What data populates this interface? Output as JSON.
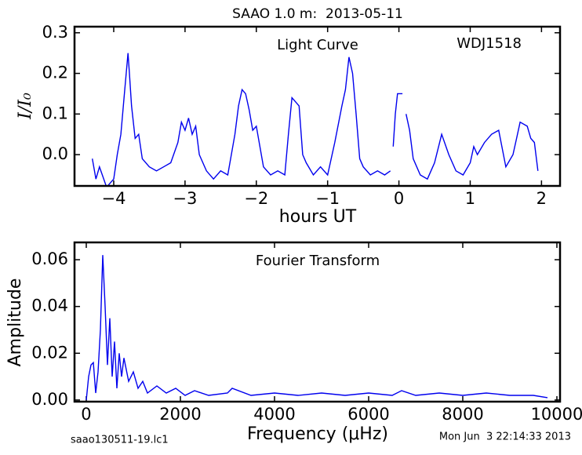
{
  "title": "SAAO 1.0 m:  2013-05-11",
  "footer": {
    "left": "saao130511-19.lc1",
    "right": "Mon Jun  3 22:14:33 2013"
  },
  "chart_data": [
    {
      "type": "line",
      "annotations": [
        "Light Curve",
        "WDJ1518"
      ],
      "xlabel": "hours UT",
      "ylabel": "I/I₀",
      "x": [
        -4.3,
        -4.25,
        -4.2,
        -4.1,
        -4.0,
        -3.95,
        -3.9,
        -3.85,
        -3.8,
        -3.78,
        -3.75,
        -3.7,
        -3.65,
        -3.6,
        -3.5,
        -3.4,
        -3.3,
        -3.2,
        -3.1,
        -3.05,
        -3.0,
        -2.95,
        -2.9,
        -2.85,
        -2.8,
        -2.7,
        -2.6,
        -2.5,
        -2.4,
        -2.3,
        -2.25,
        -2.2,
        -2.15,
        -2.1,
        -2.05,
        -2.0,
        -1.9,
        -1.8,
        -1.7,
        -1.6,
        -1.55,
        -1.5,
        -1.45,
        -1.4,
        -1.35,
        -1.3,
        -1.2,
        -1.1,
        -1.0,
        -0.9,
        -0.8,
        -0.75,
        -0.7,
        -0.65,
        -0.6,
        -0.55,
        -0.5,
        -0.4,
        -0.3,
        -0.2,
        -0.12,
        -0.1,
        -0.08,
        -0.05,
        -0.02,
        0.0,
        0.05,
        0.07,
        0.1,
        0.15,
        0.2,
        0.3,
        0.4,
        0.5,
        0.6,
        0.7,
        0.8,
        0.9,
        1.0,
        1.05,
        1.1,
        1.2,
        1.3,
        1.4,
        1.5,
        1.6,
        1.65,
        1.7,
        1.8,
        1.85,
        1.9,
        1.95
      ],
      "series": [
        {
          "color": "#0000ee",
          "values": [
            -0.01,
            -0.06,
            -0.03,
            -0.08,
            -0.06,
            0.0,
            0.05,
            0.15,
            0.25,
            0.2,
            0.12,
            0.04,
            0.05,
            -0.01,
            -0.03,
            -0.04,
            -0.03,
            -0.02,
            0.03,
            0.08,
            0.06,
            0.09,
            0.05,
            0.07,
            0.0,
            -0.04,
            -0.06,
            -0.04,
            -0.05,
            0.05,
            0.12,
            0.16,
            0.15,
            0.11,
            0.06,
            0.07,
            -0.03,
            -0.05,
            -0.04,
            -0.05,
            0.05,
            0.14,
            0.13,
            0.12,
            0.0,
            -0.02,
            -0.05,
            -0.03,
            -0.05,
            0.03,
            0.12,
            0.16,
            0.24,
            0.2,
            0.1,
            -0.01,
            -0.03,
            -0.05,
            -0.04,
            -0.05,
            -0.04,
            null,
            0.02,
            0.1,
            0.15,
            0.15,
            0.15,
            null,
            0.1,
            0.06,
            -0.01,
            -0.05,
            -0.06,
            -0.02,
            0.05,
            0.0,
            -0.04,
            -0.05,
            -0.02,
            0.02,
            0.0,
            0.03,
            0.05,
            0.06,
            -0.03,
            0.0,
            0.04,
            0.08,
            0.07,
            0.04,
            0.03,
            -0.04
          ]
        }
      ],
      "xlim": [
        -4.55,
        2.26
      ],
      "ylim": [
        -0.077,
        0.315
      ],
      "xticks": [
        {
          "value": -4,
          "label": "−4"
        },
        {
          "value": -3,
          "label": "−3"
        },
        {
          "value": -2,
          "label": "−2"
        },
        {
          "value": -1,
          "label": "−1"
        },
        0,
        1,
        2
      ],
      "yticks": [
        {
          "value": 0,
          "label": "0.0"
        },
        0.1,
        0.2,
        0.3
      ]
    },
    {
      "type": "line",
      "annotations": [
        "Fourier Transform"
      ],
      "xlabel": "Frequency (μHz)",
      "ylabel": "Amplitude",
      "x": [
        0,
        50,
        100,
        150,
        200,
        250,
        300,
        350,
        400,
        450,
        500,
        550,
        600,
        650,
        700,
        750,
        800,
        900,
        1000,
        1100,
        1200,
        1300,
        1500,
        1700,
        1900,
        2100,
        2300,
        2600,
        3000,
        3100,
        3500,
        4000,
        4500,
        5000,
        5500,
        6000,
        6500,
        6700,
        7000,
        7500,
        8000,
        8500,
        9000,
        9500,
        9800
      ],
      "series": [
        {
          "color": "#0000ee",
          "values": [
            0,
            0.01,
            0.015,
            0.016,
            0.003,
            0.012,
            0.03,
            0.062,
            0.04,
            0.015,
            0.035,
            0.01,
            0.025,
            0.005,
            0.02,
            0.01,
            0.018,
            0.008,
            0.012,
            0.005,
            0.008,
            0.003,
            0.006,
            0.003,
            0.005,
            0.002,
            0.004,
            0.002,
            0.003,
            0.005,
            0.002,
            0.003,
            0.002,
            0.003,
            0.002,
            0.003,
            0.002,
            0.004,
            0.002,
            0.003,
            0.002,
            0.003,
            0.002,
            0.002,
            0.001
          ]
        }
      ],
      "xlim": [
        -250,
        10067
      ],
      "ylim": [
        -0.0007,
        0.0674
      ],
      "xticks": [
        0,
        2000,
        4000,
        6000,
        8000,
        10000
      ],
      "yticks": [
        {
          "value": 0,
          "label": "0.00"
        },
        {
          "value": 0.02,
          "label": "0.02"
        },
        {
          "value": 0.04,
          "label": "0.04"
        },
        {
          "value": 0.06,
          "label": "0.06"
        }
      ]
    }
  ]
}
